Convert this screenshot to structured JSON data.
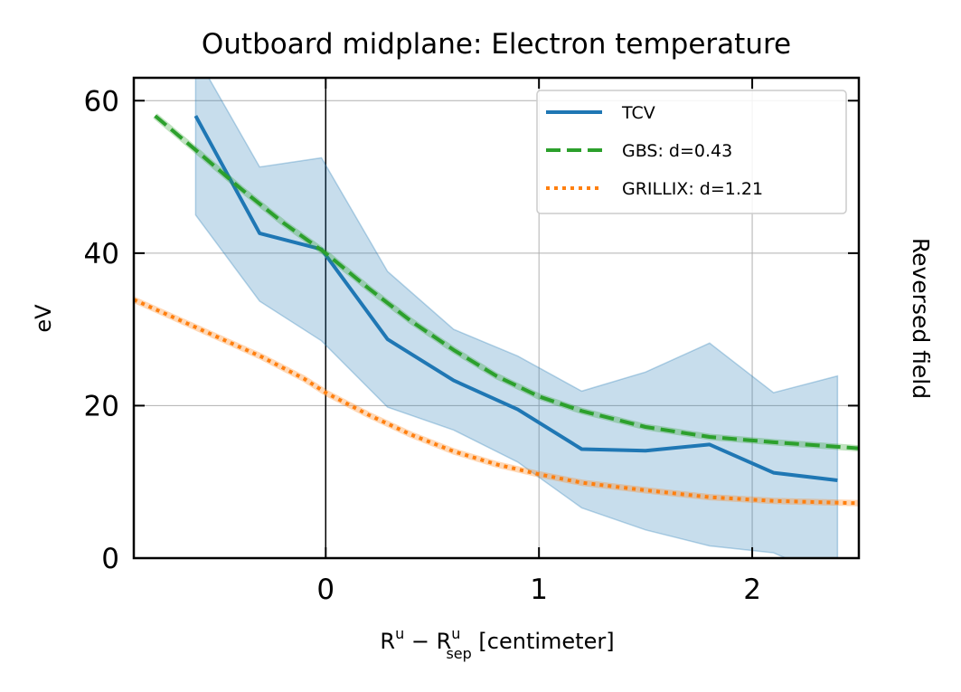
{
  "chart_data": {
    "type": "line",
    "title": "Outboard midplane: Electron temperature",
    "ylabel": "eV",
    "xlabel": {
      "main": "R",
      "sup1": "u",
      "minus": " − R",
      "sub": "sep",
      "sup2": "u",
      "unit": " [centimeter]"
    },
    "side_label": "Reversed field",
    "xlim": [
      -0.9,
      2.5
    ],
    "ylim": [
      0,
      63
    ],
    "xticks": [
      0,
      1,
      2
    ],
    "yticks": [
      0,
      20,
      40,
      60
    ],
    "grid": true,
    "legend_position": "top-right",
    "series": [
      {
        "name": "TCV",
        "style": "solid",
        "color": "#1f77b4",
        "x": [
          -0.61,
          -0.31,
          -0.02,
          0.29,
          0.6,
          0.9,
          1.2,
          1.5,
          1.8,
          2.1,
          2.4
        ],
        "y": [
          58,
          42.6,
          40.5,
          28.7,
          23.3,
          19.5,
          14.3,
          14.1,
          14.9,
          11.2,
          10.2
        ],
        "band_upper": [
          66,
          51.3,
          52.5,
          37.6,
          30,
          26.5,
          21.9,
          24.4,
          28.2,
          21.7,
          23.9
        ],
        "band_lower": [
          45,
          33.7,
          28.5,
          19.8,
          16.8,
          12.6,
          6.6,
          3.7,
          1.6,
          0.7,
          -3
        ]
      },
      {
        "name": "GBS: d=0.43",
        "style": "dashed",
        "color": "#2ca02c",
        "x": [
          -0.8,
          -0.6,
          -0.4,
          -0.2,
          0.0,
          0.2,
          0.4,
          0.6,
          0.8,
          1.0,
          1.2,
          1.5,
          1.8,
          2.1,
          2.5
        ],
        "y": [
          58,
          53.3,
          48.5,
          44,
          40,
          35.4,
          31.1,
          27.3,
          23.9,
          21.2,
          19.3,
          17.2,
          15.9,
          15.2,
          14.4
        ]
      },
      {
        "name": "GRILLIX: d=1.21",
        "style": "dotted",
        "color": "#ff7f0e",
        "x": [
          -0.9,
          -0.7,
          -0.5,
          -0.3,
          -0.1,
          0.0,
          0.2,
          0.4,
          0.6,
          0.8,
          1.0,
          1.2,
          1.5,
          1.8,
          2.1,
          2.5
        ],
        "y": [
          33.9,
          31.4,
          28.9,
          26.4,
          23.5,
          21.7,
          18.8,
          16.2,
          14,
          12.3,
          11,
          9.9,
          8.9,
          8,
          7.5,
          7.2
        ]
      }
    ]
  }
}
